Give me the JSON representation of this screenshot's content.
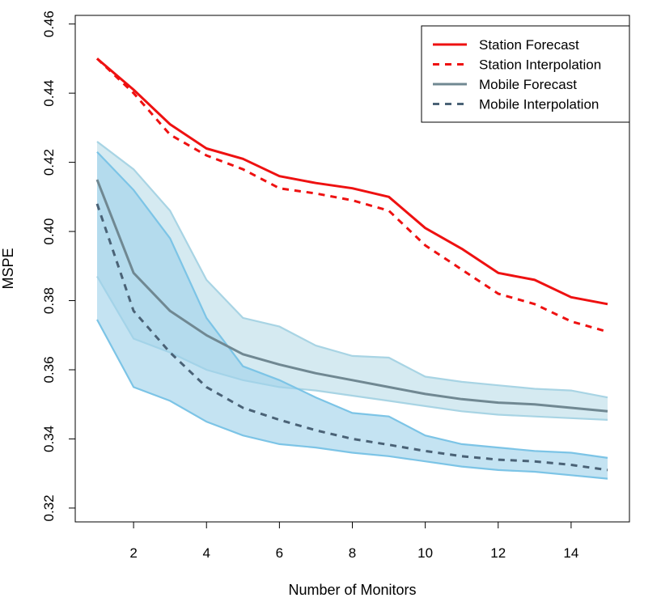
{
  "chart_data": {
    "type": "line",
    "title": "",
    "xlabel": "Number of Monitors",
    "ylabel": "MSPE",
    "xlim": [
      0.4,
      15.6
    ],
    "ylim": [
      0.316,
      0.4625
    ],
    "xticks": [
      2,
      4,
      6,
      8,
      10,
      12,
      14
    ],
    "xtick_labels": [
      "2",
      "4",
      "6",
      "8",
      "10",
      "12",
      "14"
    ],
    "yticks": [
      0.32,
      0.34,
      0.36,
      0.38,
      0.4,
      0.42,
      0.44,
      0.46
    ],
    "ytick_labels": [
      "0.32",
      "0.34",
      "0.36",
      "0.38",
      "0.40",
      "0.42",
      "0.44",
      "0.46"
    ],
    "x": [
      1,
      2,
      3,
      4,
      5,
      6,
      7,
      8,
      9,
      10,
      11,
      12,
      13,
      14,
      15
    ],
    "series": [
      {
        "name": "Station Forecast",
        "style": "solid",
        "color": "#ee1111",
        "values": [
          0.45,
          0.441,
          0.431,
          0.424,
          0.421,
          0.416,
          0.414,
          0.4125,
          0.41,
          0.401,
          0.395,
          0.388,
          0.386,
          0.381,
          0.379
        ]
      },
      {
        "name": "Station Interpolation",
        "style": "dashed",
        "color": "#ee1111",
        "values": [
          0.45,
          0.44,
          0.428,
          0.422,
          0.418,
          0.4125,
          0.411,
          0.409,
          0.406,
          0.396,
          0.389,
          0.382,
          0.379,
          0.374,
          0.371
        ]
      },
      {
        "name": "Mobile Forecast",
        "style": "solid",
        "color": "#708892",
        "values": [
          0.415,
          0.388,
          0.377,
          0.37,
          0.3645,
          0.3615,
          0.359,
          0.357,
          0.355,
          0.353,
          0.3515,
          0.3505,
          0.35,
          0.349,
          0.348
        ]
      },
      {
        "name": "Mobile Interpolation",
        "style": "dashed",
        "color": "#4a6276",
        "values": [
          0.408,
          0.377,
          0.365,
          0.355,
          0.349,
          0.3455,
          0.3425,
          0.34,
          0.3383,
          0.3365,
          0.335,
          0.334,
          0.3335,
          0.3325,
          0.331
        ]
      }
    ],
    "bands": [
      {
        "name": "Mobile Forecast range",
        "color": "#bcdde8",
        "edge_color": "#a8d4e4",
        "upper": [
          0.426,
          0.418,
          0.406,
          0.386,
          0.375,
          0.3725,
          0.367,
          0.364,
          0.3635,
          0.358,
          0.3565,
          0.3555,
          0.3545,
          0.354,
          0.352
        ],
        "lower": [
          0.387,
          0.369,
          0.365,
          0.36,
          0.357,
          0.355,
          0.354,
          0.3525,
          0.351,
          0.3495,
          0.348,
          0.347,
          0.3465,
          0.346,
          0.3455
        ]
      },
      {
        "name": "Mobile Interpolation range",
        "color": "#9fd2ea",
        "edge_color": "#7cc4e6",
        "upper": [
          0.423,
          0.412,
          0.398,
          0.375,
          0.361,
          0.357,
          0.352,
          0.3475,
          0.3465,
          0.341,
          0.3385,
          0.3375,
          0.3365,
          0.336,
          0.3345
        ],
        "lower": [
          0.3745,
          0.355,
          0.351,
          0.345,
          0.341,
          0.3385,
          0.3375,
          0.336,
          0.335,
          0.3335,
          0.332,
          0.331,
          0.3305,
          0.3295,
          0.3285
        ]
      }
    ],
    "legend": {
      "position": "top-right",
      "entries": [
        {
          "label": "Station Forecast",
          "color": "#ee1111",
          "style": "solid"
        },
        {
          "label": "Station Interpolation",
          "color": "#ee1111",
          "style": "dashed"
        },
        {
          "label": "Mobile Forecast",
          "color": "#708892",
          "style": "solid"
        },
        {
          "label": "Mobile Interpolation",
          "color": "#4a6276",
          "style": "dashed"
        }
      ]
    }
  }
}
